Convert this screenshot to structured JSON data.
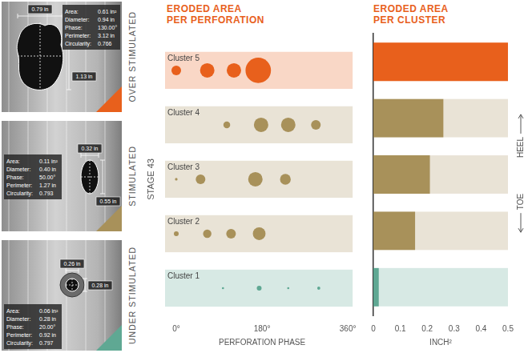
{
  "panels": [
    {
      "label": "OVER STIMULATED",
      "color": "#e8601c",
      "width_label": "0.79 in",
      "height_label": "1.13 in",
      "stats": [
        [
          "Area:",
          "0.61 in²"
        ],
        [
          "Diameter:",
          "0.94 in"
        ],
        [
          "Phase:",
          "130.00°"
        ],
        [
          "Perimeter:",
          "3.12 in"
        ],
        [
          "Circularity:",
          "0.766"
        ]
      ]
    },
    {
      "label": "STIMULATED",
      "color": "#a8915a",
      "width_label": "0.32 in",
      "height_label": "0.55 in",
      "stats": [
        [
          "Area:",
          "0.11 in²"
        ],
        [
          "Diameter:",
          "0.40 in"
        ],
        [
          "Phase:",
          "50.00°"
        ],
        [
          "Perimeter:",
          "1.27 in"
        ],
        [
          "Circularity:",
          "0.793"
        ]
      ]
    },
    {
      "label": "UNDER STIMULATED",
      "color": "#5fa893",
      "width_label": "0.26 in",
      "height_label": "0.28 in",
      "stats": [
        [
          "Area:",
          "0.06 in²"
        ],
        [
          "Diameter:",
          "0.28 in"
        ],
        [
          "Phase:",
          "20.00°"
        ],
        [
          "Perimeter:",
          "0.92 in"
        ],
        [
          "Circularity:",
          "0.797"
        ]
      ]
    }
  ],
  "chart_data": [
    {
      "type": "bubble",
      "title": "ERODED AREA PER PERFORATION",
      "xlabel": "PERFORATION PHASE",
      "ylabel": "STAGE 43",
      "categories": [
        "Cluster 5",
        "Cluster 4",
        "Cluster 3",
        "Cluster 2",
        "Cluster 1"
      ],
      "series": [
        {
          "name": "Cluster 5",
          "color": "#e8601c",
          "x": [
            0,
            65,
            121,
            172
          ],
          "eroded_area": [
            0.04,
            0.09,
            0.09,
            0.28
          ]
        },
        {
          "name": "Cluster 4",
          "color": "#a8915a",
          "x": [
            106,
            178,
            235,
            293
          ],
          "eroded_area": [
            0.02,
            0.09,
            0.09,
            0.04
          ]
        },
        {
          "name": "Cluster 3",
          "color": "#a8915a",
          "x": [
            0,
            51,
            166,
            229
          ],
          "eroded_area": [
            0.003,
            0.04,
            0.09,
            0.05
          ]
        },
        {
          "name": "Cluster 2",
          "color": "#a8915a",
          "x": [
            0,
            65,
            115,
            174
          ],
          "eroded_area": [
            0.01,
            0.03,
            0.04,
            0.07
          ]
        },
        {
          "name": "Cluster 1",
          "color": "#5fa893",
          "x": [
            98,
            174,
            235,
            299
          ],
          "eroded_area": [
            0.002,
            0.01,
            0.002,
            0.004
          ]
        }
      ],
      "xlim": [
        0,
        360
      ],
      "xticks": [
        {
          "value": 0,
          "label": "0°"
        },
        {
          "value": 180,
          "label": "180°"
        },
        {
          "value": 360,
          "label": "360°"
        }
      ],
      "tick_labels": "x",
      "grid": false
    },
    {
      "type": "bar",
      "title": "ERODED AREA PER CLUSTER",
      "xlabel": "INCH²",
      "orientation": "horizontal",
      "categories": [
        "Cluster 5",
        "Cluster 4",
        "Cluster 3",
        "Cluster 2",
        "Cluster 1"
      ],
      "values": [
        0.5,
        0.26,
        0.21,
        0.155,
        0.02
      ],
      "colors": [
        "#e8601c",
        "#a8915a",
        "#a8915a",
        "#a8915a",
        "#5fa893"
      ],
      "xlim": [
        0,
        0.5
      ],
      "xticks": [
        0,
        0.1,
        0.2,
        0.3,
        0.4,
        0.5
      ],
      "tick_labels": "x",
      "grid": false,
      "annotations": [
        "HEEL",
        "TOE"
      ]
    }
  ]
}
